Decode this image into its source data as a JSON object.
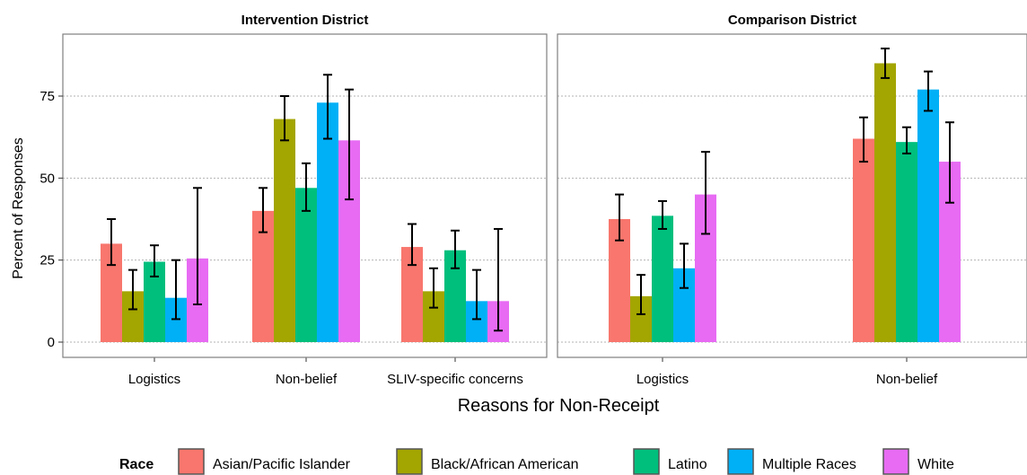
{
  "chart_data": {
    "type": "bar",
    "xlabel": "Reasons for Non-Receipt",
    "ylabel": "Percent of Responses",
    "ylim": [
      0,
      95
    ],
    "yticks": [
      0,
      25,
      50,
      75
    ],
    "grid": "horizontal dotted",
    "legend": {
      "title": "Race",
      "position": "bottom",
      "entries": [
        "Asian/Pacific Islander",
        "Black/African American",
        "Latino",
        "Multiple Races",
        "White"
      ]
    },
    "colors": [
      "#F8766D",
      "#A3A500",
      "#00BF7D",
      "#00B0F6",
      "#E76BF3"
    ],
    "panels": [
      {
        "title": "Intervention District",
        "categories": [
          "Logistics",
          "Non-belief",
          "SLIV-specific concerns"
        ],
        "series": [
          {
            "name": "Asian/Pacific Islander",
            "values": [
              30,
              40,
              29
            ],
            "lower": [
              23.5,
              33.5,
              23.5
            ],
            "upper": [
              37.5,
              47,
              36
            ]
          },
          {
            "name": "Black/African American",
            "values": [
              15.5,
              68,
              15.5
            ],
            "lower": [
              10,
              61.5,
              10.5
            ],
            "upper": [
              22,
              75,
              22.5
            ]
          },
          {
            "name": "Latino",
            "values": [
              24.5,
              47,
              28
            ],
            "lower": [
              20,
              40,
              22.5
            ],
            "upper": [
              29.5,
              54.5,
              34
            ]
          },
          {
            "name": "Multiple Races",
            "values": [
              13.5,
              73,
              12.5
            ],
            "lower": [
              7,
              62,
              7
            ],
            "upper": [
              25,
              81.5,
              22
            ]
          },
          {
            "name": "White",
            "values": [
              25.5,
              61.5,
              12.5
            ],
            "lower": [
              11.5,
              43.5,
              3.5
            ],
            "upper": [
              47,
              77,
              34.5
            ]
          }
        ]
      },
      {
        "title": "Comparison District",
        "categories": [
          "Logistics",
          "Non-belief"
        ],
        "series": [
          {
            "name": "Asian/Pacific Islander",
            "values": [
              37.5,
              62
            ],
            "lower": [
              31,
              55
            ],
            "upper": [
              45,
              68.5
            ]
          },
          {
            "name": "Black/African American",
            "values": [
              14,
              85
            ],
            "lower": [
              8.5,
              80.5
            ],
            "upper": [
              20.5,
              89.5
            ]
          },
          {
            "name": "Latino",
            "values": [
              38.5,
              61
            ],
            "lower": [
              34.5,
              57.5
            ],
            "upper": [
              43,
              65.5
            ]
          },
          {
            "name": "Multiple Races",
            "values": [
              22.5,
              77
            ],
            "lower": [
              16.5,
              70.5
            ],
            "upper": [
              30,
              82.5
            ]
          },
          {
            "name": "White",
            "values": [
              45,
              55
            ],
            "lower": [
              33,
              42.5
            ],
            "upper": [
              58,
              67
            ]
          }
        ]
      }
    ]
  }
}
